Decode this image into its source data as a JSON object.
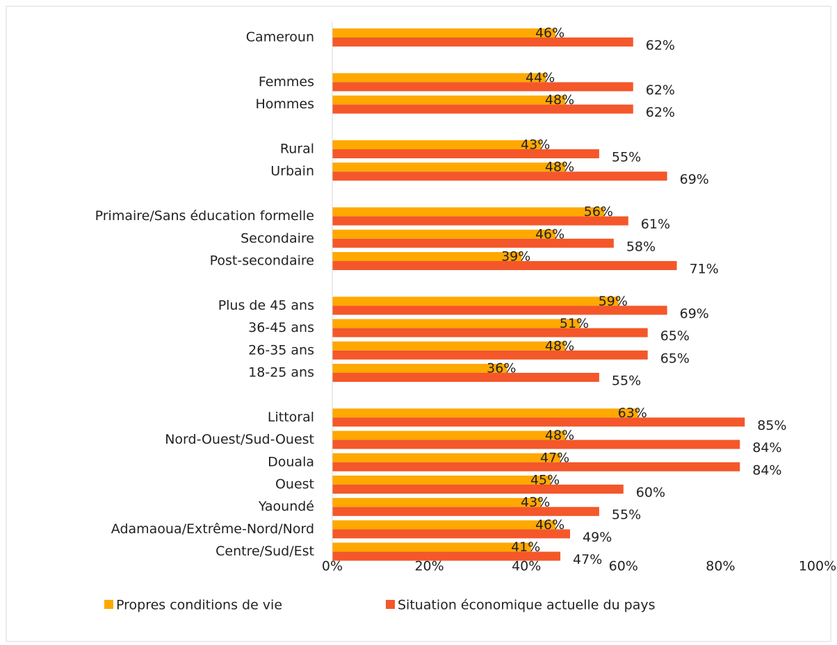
{
  "chart_data": {
    "type": "bar",
    "orientation": "horizontal",
    "categories": [
      "Cameroun",
      null,
      "Femmes",
      "Hommes",
      null,
      "Rural",
      "Urbain",
      null,
      "Primaire/Sans éducation formelle",
      "Secondaire",
      "Post-secondaire",
      null,
      "Plus de 45 ans",
      "36-45 ans",
      "26-35 ans",
      "18-25 ans",
      null,
      "Littoral",
      "Nord-Ouest/Sud-Ouest",
      "Douala",
      "Ouest",
      "Yaoundé",
      "Adamaoua/Extrême-Nord/Nord",
      "Centre/Sud/Est"
    ],
    "series": [
      {
        "name": "Propres conditions de vie",
        "color": "#ffa800",
        "values": [
          46,
          null,
          44,
          48,
          null,
          43,
          48,
          null,
          56,
          46,
          39,
          null,
          59,
          51,
          48,
          36,
          null,
          63,
          48,
          47,
          45,
          43,
          46,
          41
        ],
        "value_labels": [
          "46%",
          null,
          "44%",
          "48%",
          null,
          "43%",
          "48%",
          null,
          "56%",
          "46%",
          "39%",
          null,
          "59%",
          "51%",
          "48%",
          "36%",
          null,
          "63%",
          "48%",
          "47%",
          "45%",
          "43%",
          "46%",
          "41%"
        ]
      },
      {
        "name": "Situation économique actuelle du pays",
        "color": "#f4572a",
        "values": [
          62,
          null,
          62,
          62,
          null,
          55,
          69,
          null,
          61,
          58,
          71,
          null,
          69,
          65,
          65,
          55,
          null,
          85,
          84,
          84,
          60,
          55,
          49,
          47
        ],
        "value_labels": [
          "62%",
          null,
          "62%",
          "62%",
          null,
          "55%",
          "69%",
          null,
          "61%",
          "58%",
          "71%",
          null,
          "69%",
          "65%",
          "65%",
          "55%",
          null,
          "85%",
          "84%",
          "84%",
          "60%",
          "55%",
          "49%",
          "47%"
        ]
      }
    ],
    "xlim": [
      0,
      100
    ],
    "xticks": [
      {
        "value": 0,
        "label": "0%"
      },
      {
        "value": 20,
        "label": "20%"
      },
      {
        "value": 40,
        "label": "40%"
      },
      {
        "value": 60,
        "label": "60%"
      },
      {
        "value": 80,
        "label": "80%"
      },
      {
        "value": 100,
        "label": "100%"
      }
    ],
    "legend": "bottom"
  }
}
